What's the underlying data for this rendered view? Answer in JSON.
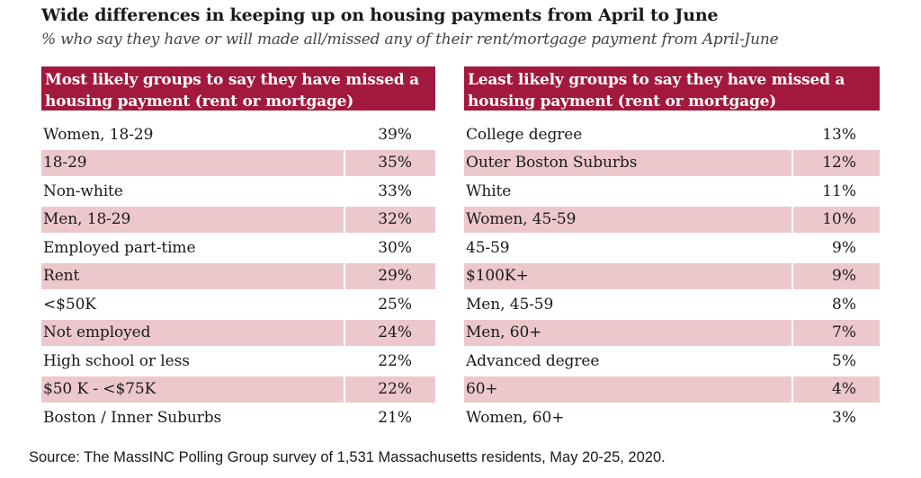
{
  "header": {
    "title": "Wide differences in keeping up on housing payments from April to June",
    "subtitle": "% who say they have or will made all/missed any of their rent/mortgage payment from April-June"
  },
  "chart_data": [
    {
      "type": "table",
      "title": "Most likely groups to say they have missed a housing payment (rent or mortgage)",
      "rows": [
        {
          "label": "Women, 18-29",
          "value": "39%"
        },
        {
          "label": "18-29",
          "value": "35%"
        },
        {
          "label": "Non-white",
          "value": "33%"
        },
        {
          "label": "Men, 18-29",
          "value": "32%"
        },
        {
          "label": "Employed part-time",
          "value": "30%"
        },
        {
          "label": "Rent",
          "value": "29%"
        },
        {
          "label": "<$50K",
          "value": "25%"
        },
        {
          "label": "Not employed",
          "value": "24%"
        },
        {
          "label": "High school or less",
          "value": "22%"
        },
        {
          "label": "$50 K - <$75K",
          "value": "22%"
        },
        {
          "label": "Boston / Inner Suburbs",
          "value": "21%"
        }
      ]
    },
    {
      "type": "table",
      "title": "Least likely groups to say they have missed a housing payment (rent or mortgage)",
      "rows": [
        {
          "label": "College degree",
          "value": "13%"
        },
        {
          "label": "Outer Boston Suburbs",
          "value": "12%"
        },
        {
          "label": "White",
          "value": "11%"
        },
        {
          "label": "Women, 45-59",
          "value": "10%"
        },
        {
          "label": "45-59",
          "value": "9%"
        },
        {
          "label": "$100K+",
          "value": "9%"
        },
        {
          "label": "Men, 45-59",
          "value": "8%"
        },
        {
          "label": "Men, 60+",
          "value": "7%"
        },
        {
          "label": "Advanced degree",
          "value": "5%"
        },
        {
          "label": "60+",
          "value": "4%"
        },
        {
          "label": "Women, 60+",
          "value": "3%"
        }
      ]
    }
  ],
  "footer": {
    "source": "Source: The MassINC Polling Group survey of 1,531 Massachusetts residents, May 20-25, 2020."
  },
  "colors": {
    "header_bg": "#a3183d",
    "stripe": "#ecc8cc"
  }
}
